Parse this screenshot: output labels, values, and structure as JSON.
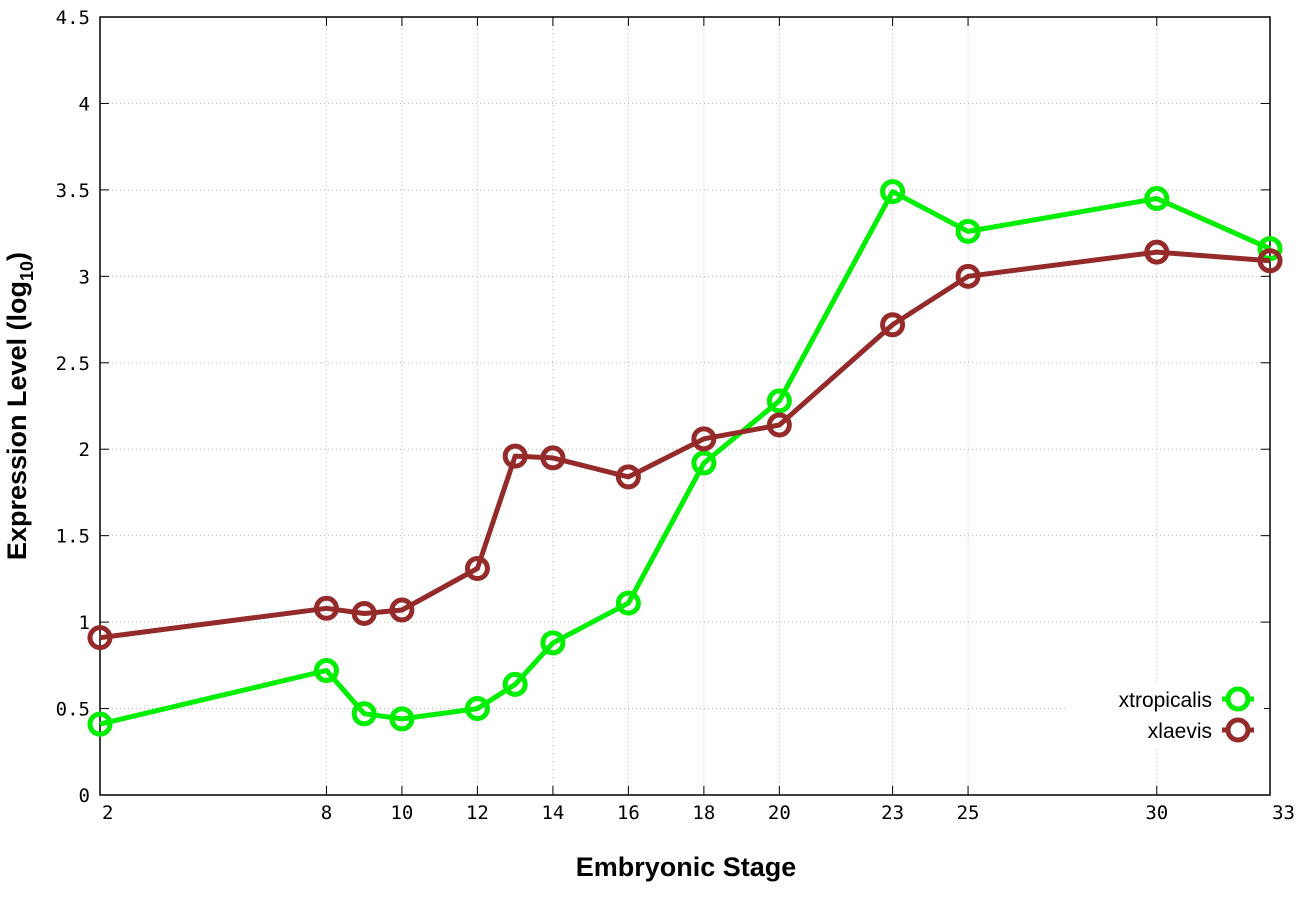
{
  "chart_data": {
    "type": "line",
    "title": "",
    "xlabel": "Embryonic Stage",
    "ylabel_main": "Expression Level (log",
    "ylabel_sub": "10",
    "ylabel_close": ")",
    "x_ticks": [
      2,
      8,
      10,
      12,
      14,
      16,
      18,
      20,
      23,
      25,
      30,
      33
    ],
    "y_ticks": [
      "0",
      "0.5",
      "1",
      "1.5",
      "2",
      "2.5",
      "3",
      "3.5",
      "4",
      "4.5"
    ],
    "ylim": [
      0,
      4.5
    ],
    "grid": true,
    "legend_position": "bottom-right",
    "x": [
      2,
      8,
      9,
      10,
      12,
      13,
      14,
      16,
      18,
      20,
      23,
      25,
      30,
      33
    ],
    "series": [
      {
        "name": "xtropicalis",
        "color": "#00ee00",
        "values": [
          0.41,
          0.72,
          0.47,
          0.44,
          0.5,
          0.64,
          0.88,
          1.11,
          1.92,
          2.28,
          3.49,
          3.26,
          3.45,
          3.16
        ]
      },
      {
        "name": "xlaevis",
        "color": "#942a2a",
        "values": [
          0.91,
          1.08,
          1.05,
          1.07,
          1.31,
          1.96,
          1.95,
          1.84,
          2.06,
          2.14,
          2.72,
          3.0,
          3.14,
          3.09
        ]
      }
    ]
  }
}
